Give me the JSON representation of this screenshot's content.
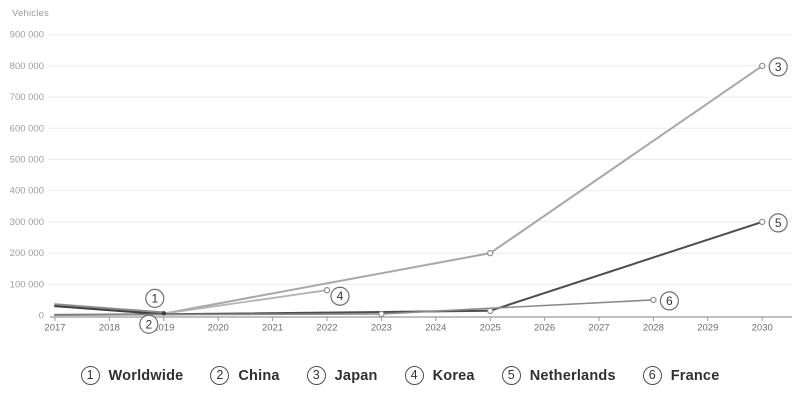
{
  "chart_data": {
    "type": "line",
    "title": "",
    "ylabel": "Vehicles",
    "xlabel": "",
    "grid": true,
    "legend_position": "bottom",
    "x_ticks": [
      2017,
      2018,
      2019,
      2020,
      2021,
      2022,
      2023,
      2024,
      2025,
      2026,
      2027,
      2028,
      2029,
      2030
    ],
    "y_ticks": [
      {
        "value": 0,
        "label": "0"
      },
      {
        "value": 100000,
        "label": "100 000"
      },
      {
        "value": 200000,
        "label": "200 000"
      },
      {
        "value": 300000,
        "label": "300 000"
      },
      {
        "value": 400000,
        "label": "400 000"
      },
      {
        "value": 500000,
        "label": "500 000"
      },
      {
        "value": 600000,
        "label": "600 000"
      },
      {
        "value": 700000,
        "label": "700 000"
      },
      {
        "value": 800000,
        "label": "800 000"
      },
      {
        "value": 900000,
        "label": "900 000"
      }
    ],
    "ylim": [
      0,
      950000
    ],
    "xlim": [
      2017,
      2030
    ],
    "series": [
      {
        "number": "1",
        "name": "Worldwide",
        "color": "#8f8f8f",
        "width": 2,
        "points": [
          [
            2017,
            36000
          ],
          [
            2019,
            10000
          ]
        ],
        "markers": [],
        "label_placement": "above"
      },
      {
        "number": "2",
        "name": "China",
        "color": "#3f3f3f",
        "width": 2,
        "points": [
          [
            2017,
            30000
          ],
          [
            2019,
            4000
          ]
        ],
        "markers": [],
        "label_placement": "below"
      },
      {
        "number": "3",
        "name": "Japan",
        "color": "#a8a8a8",
        "width": 2,
        "points": [
          [
            2019,
            6000
          ],
          [
            2025,
            200000
          ],
          [
            2030,
            800000
          ]
        ],
        "markers": [
          2025,
          2030
        ],
        "label_placement": "right"
      },
      {
        "number": "4",
        "name": "Korea",
        "color": "#b3b3b3",
        "width": 1.8,
        "points": [
          [
            2019,
            6000
          ],
          [
            2022,
            81000
          ]
        ],
        "markers": [
          2022
        ],
        "label_placement": "right-below"
      },
      {
        "number": "5",
        "name": "Netherlands",
        "color": "#4d4d4d",
        "width": 2,
        "points": [
          [
            2017,
            2000
          ],
          [
            2019,
            4000
          ],
          [
            2025,
            15000
          ],
          [
            2030,
            300000
          ]
        ],
        "markers": [
          2025,
          2030
        ],
        "label_placement": "right"
      },
      {
        "number": "6",
        "name": "France",
        "color": "#8a8a8a",
        "width": 1.6,
        "points": [
          [
            2017,
            1500
          ],
          [
            2019,
            3000
          ],
          [
            2023,
            5000
          ],
          [
            2028,
            50000
          ]
        ],
        "markers": [
          2023,
          2028
        ],
        "label_placement": "right"
      }
    ],
    "junction_point": {
      "year": 2019,
      "value": 7000
    },
    "colors": {
      "grid": "#ebebeb",
      "axis": "#9b9b9b",
      "y_tick_text": "#9d9d9d",
      "x_tick_text": "#6e6e6e",
      "callout_stroke": "#6f6f6f",
      "callout_text": "#333333",
      "marker_fill": "#ffffff"
    }
  }
}
